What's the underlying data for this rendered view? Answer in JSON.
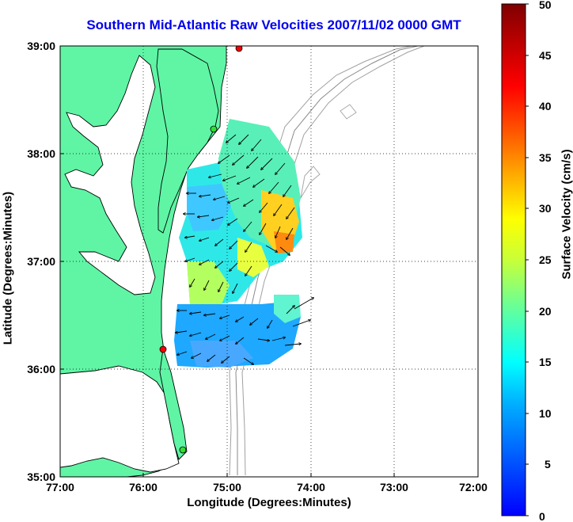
{
  "title": "Southern Mid-Atlantic Raw Velocities 2007/11/02 0000 GMT",
  "x_axis": {
    "label": "Longitude (Degrees:Minutes)",
    "ticks": [
      "77:00",
      "76:00",
      "75:00",
      "74:00",
      "73:00",
      "72:00"
    ]
  },
  "y_axis": {
    "label": "Latitude (Degrees:Minutes)",
    "ticks": [
      "39:00",
      "38:00",
      "37:00",
      "36:00",
      "35:00"
    ]
  },
  "colorbar": {
    "label": "Surface Velocity (cm/s)",
    "ticks": [
      "50",
      "45",
      "40",
      "35",
      "30",
      "25",
      "20",
      "15",
      "10",
      "5",
      "0"
    ],
    "min": 0,
    "max": 50
  },
  "colors": {
    "land": "#5ff5a5",
    "water": "#ffffff",
    "title": "#0000ee",
    "bathymetry": "#9a9a9a",
    "coast": "#000000"
  },
  "map": {
    "lon_range": [
      -77,
      -72
    ],
    "lat_range": [
      35,
      39
    ],
    "grid": "dotted",
    "stations": [
      {
        "color": "#ff0000"
      },
      {
        "color": "#33dd33"
      },
      {
        "color": "#ff0000"
      },
      {
        "color": "#33dd33"
      }
    ]
  }
}
